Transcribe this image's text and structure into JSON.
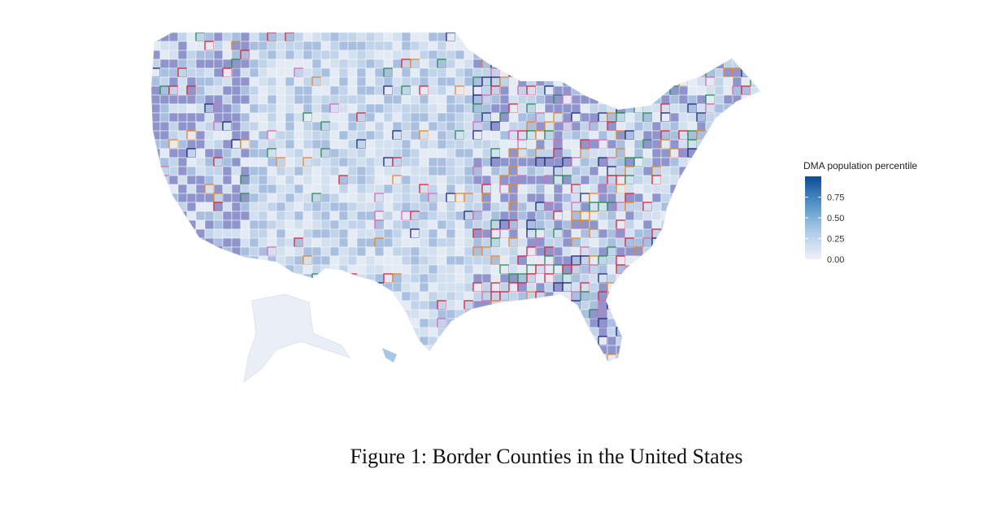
{
  "figure": {
    "legend": {
      "title": "DMA population percentile",
      "range": [
        0,
        1
      ],
      "ticks": [
        {
          "value": 0,
          "label": "0.00"
        },
        0.25,
        {
          "value": 0.5,
          "label": "0.50"
        },
        0.75
      ]
    },
    "caption": "Figure 1: Border Counties in the United States"
  }
}
